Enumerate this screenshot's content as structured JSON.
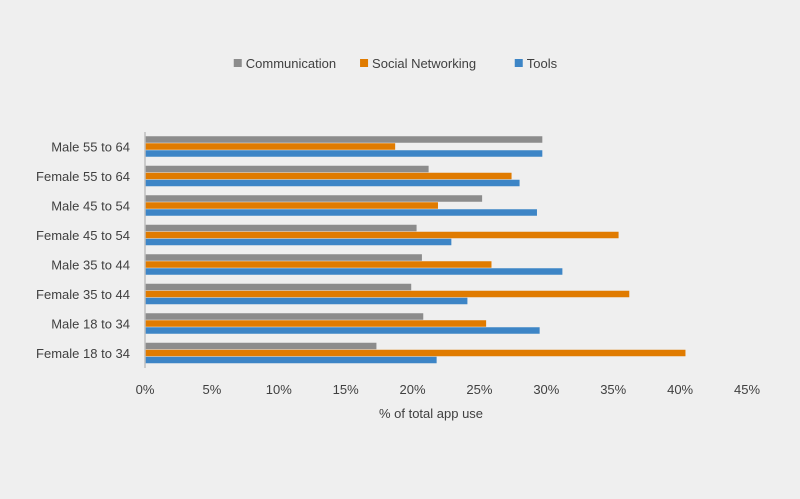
{
  "chart_data": {
    "type": "bar",
    "orientation": "horizontal",
    "categories": [
      "Male 55 to 64",
      "Female 55 to 64",
      "Male 45 to 54",
      "Female 45 to 54",
      "Male 35 to 44",
      "Female 35 to 44",
      "Male 18 to 34",
      "Female 18 to 34"
    ],
    "series": [
      {
        "name": "Communication",
        "color": "#8c8c8c",
        "values": [
          29.7,
          21.2,
          25.2,
          20.3,
          20.7,
          19.9,
          20.8,
          17.3
        ]
      },
      {
        "name": "Social Networking",
        "color": "#e07b00",
        "values": [
          18.7,
          27.4,
          21.9,
          35.4,
          25.9,
          36.2,
          25.5,
          40.4
        ]
      },
      {
        "name": "Tools",
        "color": "#3d85c6",
        "values": [
          29.7,
          28.0,
          29.3,
          22.9,
          31.2,
          24.1,
          29.5,
          21.8
        ]
      }
    ],
    "xlim": [
      0,
      45
    ],
    "xticks": [
      "0%",
      "5%",
      "10%",
      "15%",
      "20%",
      "25%",
      "30%",
      "35%",
      "40%",
      "45%"
    ],
    "xlabel": "% of total app use",
    "title": "",
    "legend_position": "top",
    "grid": false
  }
}
